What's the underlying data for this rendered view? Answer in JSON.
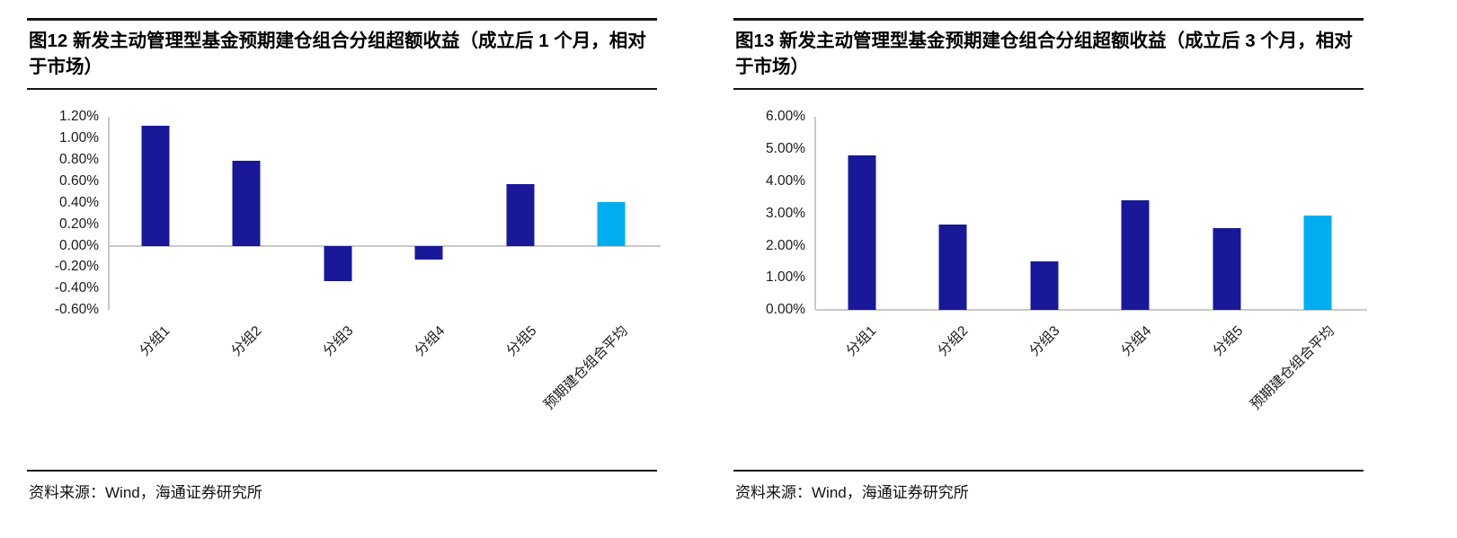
{
  "colors": {
    "bar": "#181899",
    "highlight": "#00AEEF",
    "axis": "#c9c9c9",
    "rule": "#151515"
  },
  "chart_data": [
    {
      "type": "bar",
      "title": "图12 新发主动管理型基金预期建仓组合分组超额收益（成立后 1 个月，相对于市场）",
      "categories": [
        "分组1",
        "分组2",
        "分组3",
        "分组4",
        "分组5",
        "预期建仓组合平均"
      ],
      "values": [
        1.12,
        0.79,
        -0.33,
        -0.13,
        0.57,
        0.41
      ],
      "unit": "%",
      "ylim": [
        -0.6,
        1.2
      ],
      "ystep": 0.2,
      "yticks": [
        "1.20%",
        "1.00%",
        "0.80%",
        "0.60%",
        "0.40%",
        "0.20%",
        "0.00%",
        "-0.20%",
        "-0.40%",
        "-0.60%"
      ],
      "bar_colors": [
        "navy",
        "navy",
        "navy",
        "navy",
        "navy",
        "highlight"
      ],
      "grid": "off",
      "legend": "none",
      "source": "资料来源：Wind，海通证券研究所"
    },
    {
      "type": "bar",
      "title": "图13 新发主动管理型基金预期建仓组合分组超额收益（成立后 3 个月，相对于市场）",
      "categories": [
        "分组1",
        "分组2",
        "分组3",
        "分组4",
        "分组5",
        "预期建仓组合平均"
      ],
      "values": [
        4.8,
        2.65,
        1.5,
        3.4,
        2.55,
        2.95
      ],
      "unit": "%",
      "ylim": [
        0,
        6
      ],
      "ystep": 1,
      "yticks": [
        "6.00%",
        "5.00%",
        "4.00%",
        "3.00%",
        "2.00%",
        "1.00%",
        "0.00%"
      ],
      "bar_colors": [
        "navy",
        "navy",
        "navy",
        "navy",
        "navy",
        "highlight"
      ],
      "grid": "off",
      "legend": "none",
      "source": "资料来源：Wind，海通证券研究所"
    }
  ]
}
